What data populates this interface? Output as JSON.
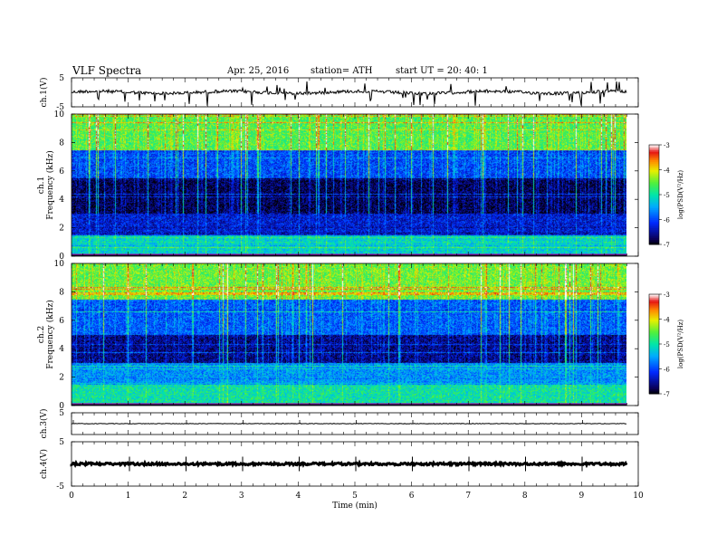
{
  "header": {
    "title": "VLF  Spectra",
    "date": "Apr. 25, 2016",
    "station": "station= ATH",
    "start": "start  UT  =   20: 40: 1"
  },
  "chart_data": {
    "type": "heatmap",
    "xlabel": "Time  (min)",
    "xlim": [
      0,
      10
    ],
    "xticks": [
      "0",
      "1",
      "2",
      "3",
      "4",
      "5",
      "6",
      "7",
      "8",
      "9",
      "10"
    ],
    "data_end_min": 9.8,
    "panels": [
      {
        "kind": "waveform",
        "label": "ch.1(V)",
        "ylim": [
          -5,
          5
        ],
        "yticks": [
          "5",
          "-5"
        ],
        "baseline": 0.0,
        "description": "noisy signal near 0 V with frequent downward spikes"
      },
      {
        "kind": "spectrogram",
        "label": "ch.1",
        "ylabel": "Frequency  (kHz)",
        "ylim": [
          0,
          10
        ],
        "yticks": [
          "0",
          "2",
          "4",
          "6",
          "8",
          "10"
        ],
        "colorbar": {
          "label": "log(PSD(V²/Hz)",
          "range": [
            -7,
            -3
          ],
          "ticks": [
            "-3",
            "-4",
            "-5",
            "-6",
            "-7"
          ]
        },
        "bands": [
          {
            "fmin": 0.0,
            "fmax": 1.5,
            "logPSD": -5.2
          },
          {
            "fmin": 1.5,
            "fmax": 3.0,
            "logPSD": -6.3
          },
          {
            "fmin": 3.0,
            "fmax": 5.5,
            "logPSD": -6.8
          },
          {
            "fmin": 5.5,
            "fmax": 7.5,
            "logPSD": -6.0
          },
          {
            "fmin": 7.5,
            "fmax": 10.0,
            "logPSD": -4.6
          }
        ]
      },
      {
        "kind": "spectrogram",
        "label": "ch.2",
        "ylabel": "Frequency  (kHz)",
        "ylim": [
          0,
          10
        ],
        "yticks": [
          "0",
          "2",
          "4",
          "6",
          "8",
          "10"
        ],
        "colorbar": {
          "label": "log(PSD(V²/Hz)",
          "range": [
            -7,
            -3
          ],
          "ticks": [
            "-3",
            "-4",
            "-5",
            "-6",
            "-7"
          ]
        },
        "bands": [
          {
            "fmin": 0.0,
            "fmax": 1.5,
            "logPSD": -5.0
          },
          {
            "fmin": 1.5,
            "fmax": 3.0,
            "logPSD": -5.6
          },
          {
            "fmin": 3.0,
            "fmax": 5.0,
            "logPSD": -6.6
          },
          {
            "fmin": 5.0,
            "fmax": 7.5,
            "logPSD": -5.9
          },
          {
            "fmin": 7.5,
            "fmax": 10.0,
            "logPSD": -4.5
          }
        ]
      },
      {
        "kind": "waveform",
        "label": "ch.3(V)",
        "ylim": [
          -5,
          5
        ],
        "yticks": [
          "5"
        ],
        "baseline": 0.0,
        "description": "flat signal near 0 V"
      },
      {
        "kind": "waveform",
        "label": "ch.4(V)",
        "ylim": [
          -5,
          5
        ],
        "yticks": [
          "5",
          "-5"
        ],
        "baseline": 0.0,
        "description": "thick flat signal near 0 V"
      }
    ]
  }
}
